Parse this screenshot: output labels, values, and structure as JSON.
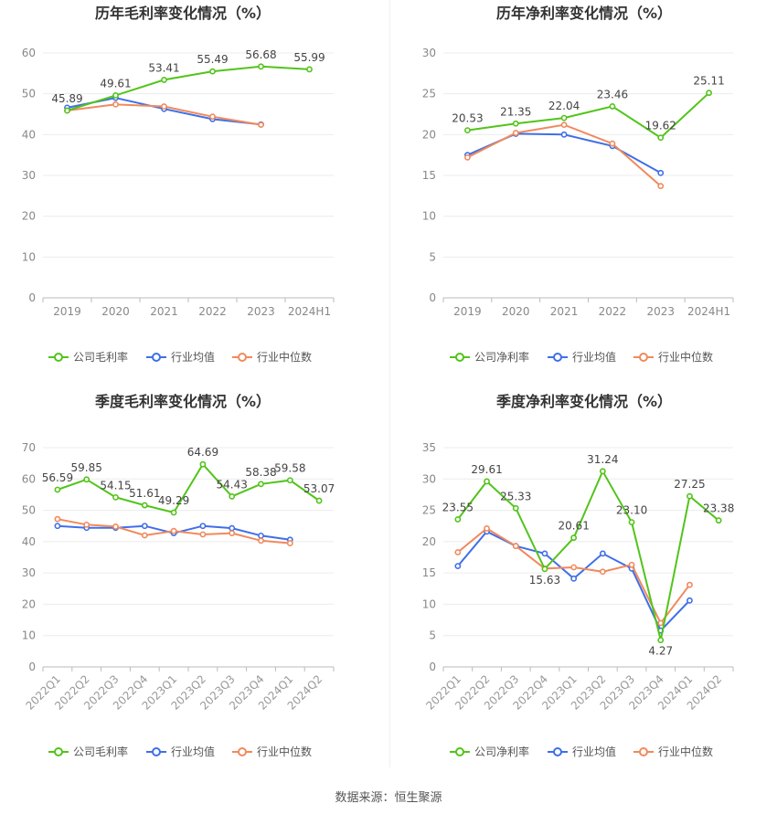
{
  "colors": {
    "company": "#52c41a",
    "industry_avg": "#3f6fe8",
    "industry_median": "#f08a5d"
  },
  "source": "数据来源：恒生聚源",
  "chart_data": [
    {
      "type": "line",
      "title": "历年毛利率变化情况（%）",
      "categories": [
        "2019",
        "2020",
        "2021",
        "2022",
        "2023",
        "2024H1"
      ],
      "yticks": [
        0,
        10,
        20,
        30,
        40,
        50,
        60
      ],
      "ylim": [
        0,
        60
      ],
      "rotate_x": false,
      "legend": "bottom",
      "series": [
        {
          "name": "公司毛利率",
          "key": "company",
          "values": [
            45.89,
            49.61,
            53.41,
            55.49,
            56.68,
            55.99
          ],
          "labels": [
            "45.89",
            "49.61",
            "53.41",
            "55.49",
            "56.68",
            "55.99"
          ]
        },
        {
          "name": "行业均值",
          "key": "industry_avg",
          "values": [
            46.6,
            49.0,
            46.3,
            43.8,
            42.5,
            null
          ]
        },
        {
          "name": "行业中位数",
          "key": "industry_median",
          "values": [
            45.9,
            47.4,
            46.9,
            44.4,
            42.4,
            null
          ]
        }
      ]
    },
    {
      "type": "line",
      "title": "历年净利率变化情况（%）",
      "categories": [
        "2019",
        "2020",
        "2021",
        "2022",
        "2023",
        "2024H1"
      ],
      "yticks": [
        0,
        5,
        10,
        15,
        20,
        25,
        30
      ],
      "ylim": [
        0,
        30
      ],
      "rotate_x": false,
      "legend": "bottom",
      "series": [
        {
          "name": "公司净利率",
          "key": "company",
          "values": [
            20.53,
            21.35,
            22.04,
            23.46,
            19.62,
            25.11
          ],
          "labels": [
            "20.53",
            "21.35",
            "22.04",
            "23.46",
            "19.62",
            "25.11"
          ]
        },
        {
          "name": "行业均值",
          "key": "industry_avg",
          "values": [
            17.5,
            20.1,
            20.0,
            18.6,
            15.3,
            null
          ]
        },
        {
          "name": "行业中位数",
          "key": "industry_median",
          "values": [
            17.2,
            20.2,
            21.2,
            18.9,
            13.7,
            null
          ]
        }
      ]
    },
    {
      "type": "line",
      "title": "季度毛利率变化情况（%）",
      "categories": [
        "2022Q1",
        "2022Q2",
        "2022Q3",
        "2022Q4",
        "2023Q1",
        "2023Q2",
        "2023Q3",
        "2023Q4",
        "2024Q1",
        "2024Q2"
      ],
      "yticks": [
        0,
        10,
        20,
        30,
        40,
        50,
        60,
        70
      ],
      "ylim": [
        0,
        70
      ],
      "rotate_x": true,
      "legend": "bottom",
      "series": [
        {
          "name": "公司毛利率",
          "key": "company",
          "values": [
            56.59,
            59.85,
            54.15,
            51.61,
            49.29,
            64.69,
            54.43,
            58.38,
            59.58,
            53.07
          ],
          "labels": [
            "56.59",
            "59.85",
            "54.15",
            "51.61",
            "49.29",
            "64.69",
            "54.43",
            "58.38",
            "59.58",
            "53.07"
          ]
        },
        {
          "name": "行业均值",
          "key": "industry_avg",
          "values": [
            45.0,
            44.4,
            44.4,
            45.0,
            42.7,
            45.0,
            44.3,
            41.9,
            40.6,
            null
          ]
        },
        {
          "name": "行业中位数",
          "key": "industry_median",
          "values": [
            47.2,
            45.4,
            44.8,
            42.0,
            43.4,
            42.3,
            42.7,
            40.3,
            39.5,
            null
          ]
        }
      ]
    },
    {
      "type": "line",
      "title": "季度净利率变化情况（%）",
      "categories": [
        "2022Q1",
        "2022Q2",
        "2022Q3",
        "2022Q4",
        "2023Q1",
        "2023Q2",
        "2023Q3",
        "2023Q4",
        "2024Q1",
        "2024Q2"
      ],
      "yticks": [
        0,
        5,
        10,
        15,
        20,
        25,
        30,
        35
      ],
      "ylim": [
        0,
        35
      ],
      "rotate_x": true,
      "legend": "bottom",
      "series": [
        {
          "name": "公司净利率",
          "key": "company",
          "values": [
            23.55,
            29.61,
            25.33,
            15.63,
            20.61,
            31.24,
            23.1,
            4.27,
            27.25,
            23.38
          ],
          "labels": [
            "23.55",
            "29.61",
            "25.33",
            "15.63",
            "20.61",
            "31.24",
            "23.10",
            "4.27",
            "27.25",
            "23.38"
          ]
        },
        {
          "name": "行业均值",
          "key": "industry_avg",
          "values": [
            16.1,
            21.6,
            19.3,
            18.1,
            14.1,
            18.1,
            15.7,
            5.8,
            10.6,
            null
          ]
        },
        {
          "name": "行业中位数",
          "key": "industry_median",
          "values": [
            18.3,
            22.1,
            19.3,
            15.7,
            15.9,
            15.2,
            16.3,
            7.0,
            13.1,
            null
          ]
        }
      ]
    }
  ]
}
